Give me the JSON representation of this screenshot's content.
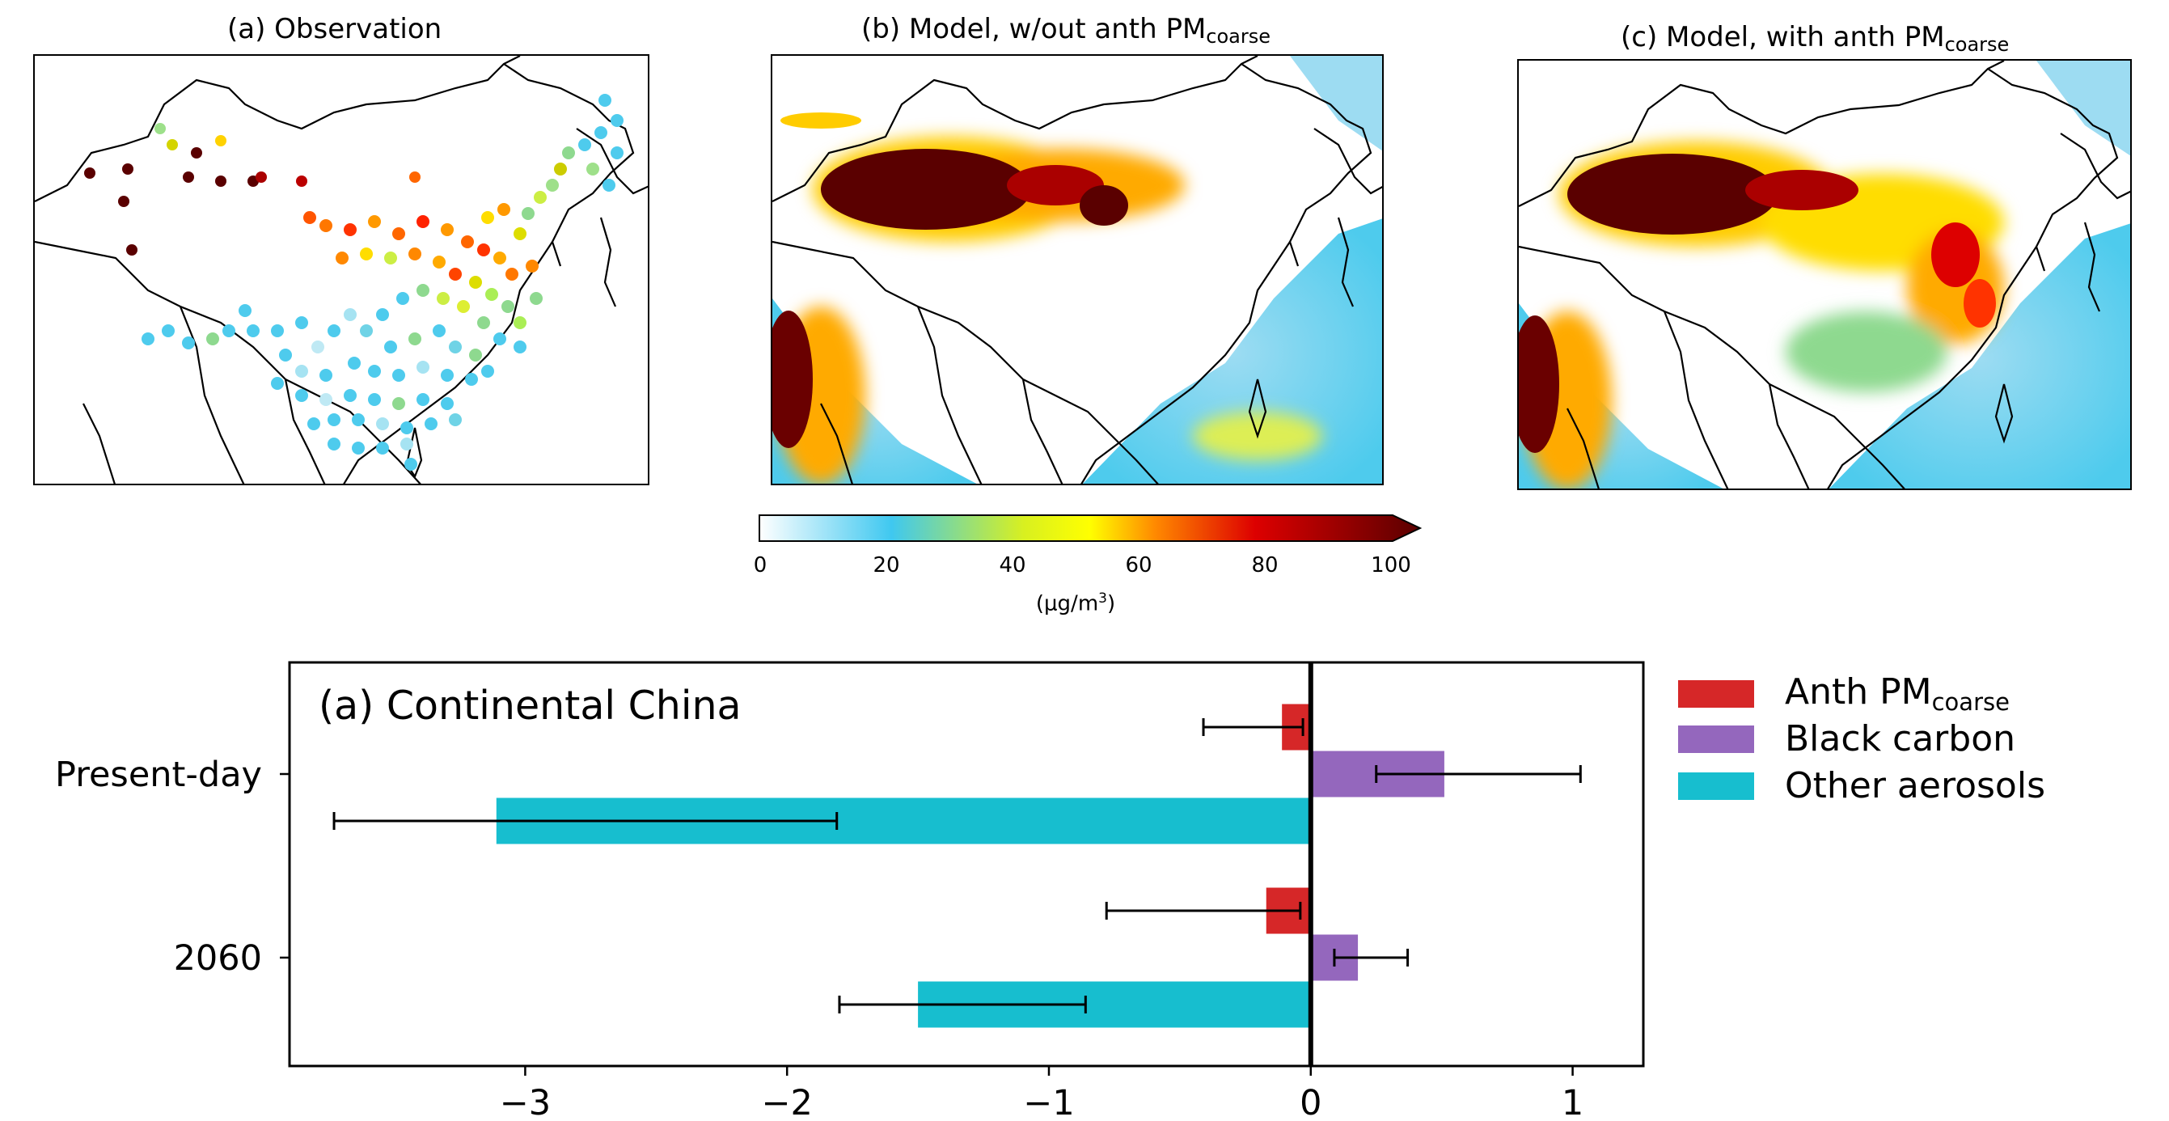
{
  "maps": {
    "panel_a_title": "(a) Observation",
    "panel_b_title_main": "(b) Model, w/out anth PM",
    "panel_b_title_sub": "coarse",
    "panel_c_title_main": "(c) Model, with anth PM",
    "panel_c_title_sub": "coarse"
  },
  "colorbar": {
    "ticks": [
      "0",
      "20",
      "40",
      "60",
      "80",
      "100"
    ],
    "unit_main": "(μg/m",
    "unit_sup": "3",
    "unit_end": ")",
    "range": [
      0,
      100
    ],
    "colors": [
      "#ffffff",
      "#3fc8f0",
      "#ffff00",
      "#ff6600",
      "#dd0000",
      "#5a0000"
    ]
  },
  "chart_data": {
    "type": "bar",
    "orientation": "horizontal",
    "title": "(a) Continental China",
    "categories": [
      "Present-day",
      "2060"
    ],
    "xlim": [
      -3.9,
      1.27
    ],
    "x_ticks": [
      "−3",
      "−2",
      "−1",
      "0",
      "1"
    ],
    "x_tick_values": [
      -3,
      -2,
      -1,
      0,
      1
    ],
    "series": [
      {
        "name_main": "Anth PM",
        "name_sub": "coarse",
        "color": "#d62728",
        "values": [
          -0.11,
          -0.17
        ],
        "err_low": [
          -0.41,
          -0.78
        ],
        "err_high": [
          -0.03,
          -0.04
        ]
      },
      {
        "name_main": "Black carbon",
        "name_sub": "",
        "color": "#9467bd",
        "values": [
          0.51,
          0.18
        ],
        "err_low": [
          0.25,
          0.09
        ],
        "err_high": [
          1.03,
          0.37
        ]
      },
      {
        "name_main": "Other aerosols",
        "name_sub": "",
        "color": "#17becf",
        "values": [
          -3.11,
          -1.5
        ],
        "err_low": [
          -3.73,
          -1.8
        ],
        "err_high": [
          -1.81,
          -0.86
        ]
      }
    ]
  }
}
